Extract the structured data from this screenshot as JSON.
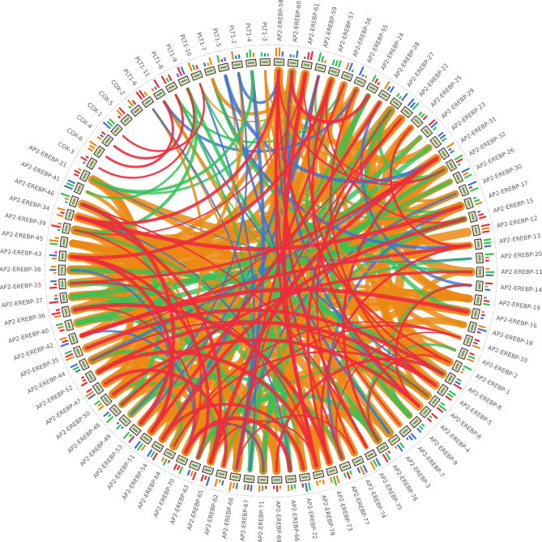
{
  "diagram": {
    "type": "circos-synteny",
    "segments": [
      "AP2-EREBP-58",
      "AP2-EREBP-60",
      "AP2-EREBP-61",
      "AP2-EREBP-59",
      "AP2-EREBP-57",
      "AP2-EREBP-56",
      "AP2-EREBP-55",
      "AP2-EREBP-24",
      "AP2-EREBP-28",
      "AP2-EREBP-27",
      "AP2-EREBP-22",
      "AP2-EREBP-25",
      "AP2-EREBP-29",
      "AP2-EREBP-23",
      "AP2-EREBP-31",
      "AP2-EREBP-32",
      "AP2-EREBP-26",
      "AP2-EREBP-30",
      "AP2-EREBP-17",
      "AP2-EREBP-15",
      "AP2-EREBP-12",
      "AP2-EREBP-13",
      "AP2-EREBP-20",
      "AP2-EREBP-11",
      "AP2-EREBP-14",
      "AP2-EREBP-19",
      "AP2-EREBP-16",
      "AP2-EREBP-18",
      "AP2-EREBP-10",
      "AP2-EREBP-2",
      "AP2-EREBP-1",
      "AP2-EREBP-8",
      "AP2-EREBP-5",
      "AP2-EREBP-6",
      "AP2-EREBP-4",
      "AP2-EREBP-9",
      "AP2-EREBP-7",
      "AP2-EREBP-3",
      "AP2-EREBP-76",
      "AP2-EREBP-75",
      "AP2-EREBP-74",
      "AP2-EREBP-77",
      "AP2-EREBP-73",
      "AP2-EREBP-78",
      "AP2-EREBP-72",
      "AP2-EREBP-66",
      "AP2-EREBP-69",
      "AP2-EREBP-71",
      "AP2-EREBP-67",
      "AP2-EREBP-68",
      "AP2-EREBP-62",
      "AP2-EREBP-65",
      "AP2-EREBP-63",
      "AP2-EREBP-70",
      "AP2-EREBP-64",
      "AP2-EREBP-54",
      "AP2-EREBP-51",
      "AP2-EREBP-53",
      "AP2-EREBP-49",
      "AP2-EREBP-48",
      "AP2-EREBP-50",
      "AP2-EREBP-47",
      "AP2-EREBP-52",
      "AP2-EREBP-44",
      "AP2-EREBP-35",
      "AP2-EREBP-42",
      "AP2-EREBP-40",
      "AP2-EREBP-36",
      "AP2-EREBP-37",
      "AP2-EREBP-33",
      "AP2-EREBP-38",
      "AP2-EREBP-43",
      "AP2-EREBP-45",
      "AP2-EREBP-39",
      "AP2-EREBP-34",
      "AP2-EREBP-46",
      "AP2-EREBP-41",
      "AP2-EREBP-21",
      "COX-3",
      "COX-6",
      "COX-4",
      "COX-1",
      "COX-5",
      "COX-2",
      "PLT1-6",
      "PLT1-11",
      "PLT1-8",
      "PLT1-9",
      "PLT1-10",
      "PLT1-7",
      "PLT1-5",
      "PLT1-2",
      "PLT1-4",
      "PLT1-3"
    ],
    "colors": {
      "orange": "#ea8a14",
      "red": "#ee2b3c",
      "green": "#35c257",
      "blue": "#3e74cf",
      "label": "#555555",
      "box_fill": "#f6d6c2",
      "box_stroke": "#222222"
    }
  }
}
